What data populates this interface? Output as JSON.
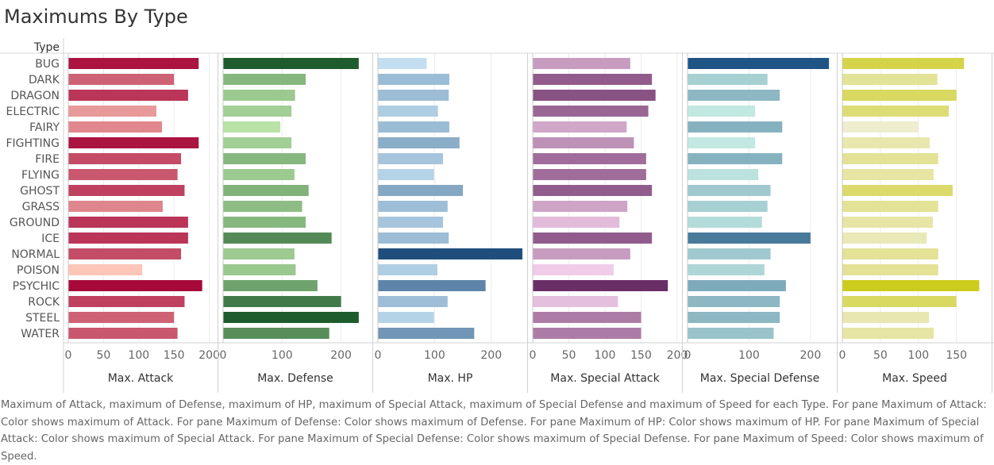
{
  "page": {
    "title": "Maximums By Type"
  },
  "chart_data": {
    "type": "bar",
    "orientation": "horizontal",
    "title": "Maximums By Type",
    "row_header": "Type",
    "categories": [
      "BUG",
      "DARK",
      "DRAGON",
      "ELECTRIC",
      "FAIRY",
      "FIGHTING",
      "FIRE",
      "FLYING",
      "GHOST",
      "GRASS",
      "GROUND",
      "ICE",
      "NORMAL",
      "POISON",
      "PSYCHIC",
      "ROCK",
      "STEEL",
      "WATER"
    ],
    "grid": true,
    "legend": "none",
    "panes": [
      {
        "xlabel": "Max. Attack",
        "xlim": [
          0,
          205
        ],
        "ticks": [
          0,
          50,
          100,
          150,
          200
        ],
        "color_low": "#fcc6b8",
        "color_high": "#a6093a",
        "values": [
          185,
          150,
          170,
          125,
          133,
          185,
          160,
          155,
          165,
          134,
          170,
          170,
          160,
          105,
          190,
          165,
          150,
          155
        ]
      },
      {
        "xlabel": "Max. Defense",
        "xlim": [
          0,
          245
        ],
        "ticks": [
          0,
          100,
          200
        ],
        "color_low": "#b8e2a6",
        "color_high": "#1e5c2d",
        "values": [
          230,
          140,
          122,
          116,
          97,
          116,
          140,
          121,
          145,
          134,
          140,
          184,
          121,
          123,
          160,
          200,
          230,
          180
        ]
      },
      {
        "xlabel": "Max. HP",
        "xlim": [
          0,
          255
        ],
        "ticks": [
          0,
          100,
          200
        ],
        "color_low": "#c2def0",
        "color_high": "#1f4e7c",
        "values": [
          86,
          126,
          125,
          106,
          126,
          144,
          115,
          99,
          150,
          123,
          115,
          125,
          255,
          105,
          190,
          123,
          99,
          170
        ]
      },
      {
        "xlabel": "Max. Special Attack",
        "xlim": [
          0,
          200
        ],
        "ticks": [
          0,
          50,
          100,
          150,
          200
        ],
        "color_low": "#f0cce8",
        "color_high": "#6a2e66",
        "values": [
          135,
          165,
          170,
          160,
          130,
          140,
          157,
          157,
          165,
          131,
          120,
          165,
          135,
          112,
          187,
          118,
          150,
          150
        ]
      },
      {
        "xlabel": "Max. Special Defense",
        "xlim": [
          0,
          235
        ],
        "ticks": [
          0,
          100,
          200
        ],
        "color_low": "#c2e8e2",
        "color_high": "#1f5585",
        "values": [
          230,
          130,
          150,
          110,
          154,
          110,
          154,
          115,
          135,
          130,
          121,
          200,
          135,
          125,
          160,
          150,
          150,
          140
        ]
      },
      {
        "xlabel": "Max. Speed",
        "xlim": [
          0,
          190
        ],
        "ticks": [
          0,
          50,
          100,
          150
        ],
        "color_low": "#eeedd0",
        "color_high": "#cccc1c",
        "values": [
          160,
          125,
          150,
          140,
          100,
          115,
          126,
          120,
          145,
          126,
          119,
          111,
          126,
          126,
          180,
          150,
          114,
          120
        ]
      }
    ]
  },
  "caption": "Maximum of Attack, maximum of Defense, maximum of HP, maximum of Special Attack, maximum of Special Defense and maximum of Speed for each Type.  For pane Maximum of Attack:  Color shows maximum of Attack.  For pane Maximum of Defense:  Color shows maximum of Defense.  For pane Maximum of HP:  Color shows maximum of HP.  For pane Maximum of Special Attack:  Color shows maximum of Special Attack.  For pane Maximum of Special Defense:  Color shows maximum of Special Defense.  For pane Maximum of Speed:  Color shows maximum of Speed."
}
